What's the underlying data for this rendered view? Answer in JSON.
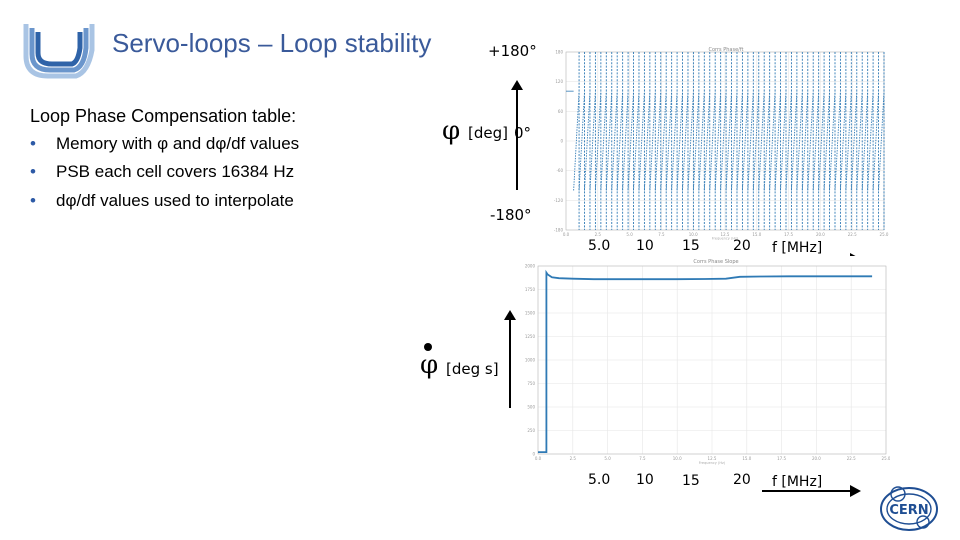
{
  "slide": {
    "title": "Servo-loops – Loop stability",
    "list_heading": "Loop Phase Compensation table:",
    "bullets": [
      {
        "marker": "•",
        "text": "Memory with φ and dφ/df values"
      },
      {
        "marker": "•",
        "text": "PSB each cell covers 16384 Hz"
      },
      {
        "marker": "•",
        "text": "dφ/df values used to interpolate"
      }
    ]
  },
  "colors": {
    "title": "#3a5a9a",
    "trace": "#2f7ab5",
    "axis_arrow": "#000000",
    "grid": "#e6e6e6",
    "cern_logo": "#1f4e93"
  },
  "icons": {
    "institution_logo": "u-logo-icon",
    "cern_logo": "cern-logo-icon"
  },
  "chart_data": [
    {
      "type": "line",
      "title": "Corrs Phase/ft",
      "xlabel": "Frequency (Hz)",
      "ylabel": "φ [deg]",
      "axis_annotations": {
        "top": "+180°",
        "middle": "0°",
        "bottom": "-180°",
        "phi_label": "φ",
        "unit_label": "[deg]"
      },
      "x_ticks_annotated": [
        "5.0",
        "10",
        "15",
        "20"
      ],
      "x_unit_label": "f [MHz]",
      "xlim": [
        0,
        25
      ],
      "ylim": [
        -180,
        180
      ],
      "series": [
        {
          "name": "phase",
          "description": "sawtooth wrapping between -180 and +180 deg",
          "start_mhz": 0.6,
          "cycles": 57,
          "segment_start_deg": -100,
          "segment_end_deg": 100
        }
      ]
    },
    {
      "type": "line",
      "title": "Corrs Phase Slope",
      "xlabel": "Frequency (Hz)",
      "ylabel": "φ̇ [deg s]",
      "axis_annotations": {
        "phi_label": "φ",
        "unit_label": "[deg s]"
      },
      "x_ticks_annotated": [
        "5.0",
        "10",
        "15",
        "20"
      ],
      "x_unit_label": "f [MHz]",
      "xlim": [
        0,
        25
      ],
      "ylim": [
        0,
        2000
      ],
      "series": [
        {
          "name": "slope",
          "x": [
            0,
            0.6,
            0.6,
            0.7,
            1.0,
            1.5,
            2.5,
            4.0,
            6.0,
            8.0,
            10.0,
            12.0,
            13.5,
            14.5,
            16.0,
            18.0,
            20.0,
            22.0,
            24.0
          ],
          "y": [
            20,
            20,
            1930,
            1910,
            1880,
            1870,
            1865,
            1860,
            1860,
            1860,
            1860,
            1862,
            1865,
            1885,
            1888,
            1890,
            1890,
            1890,
            1890
          ]
        }
      ]
    }
  ]
}
